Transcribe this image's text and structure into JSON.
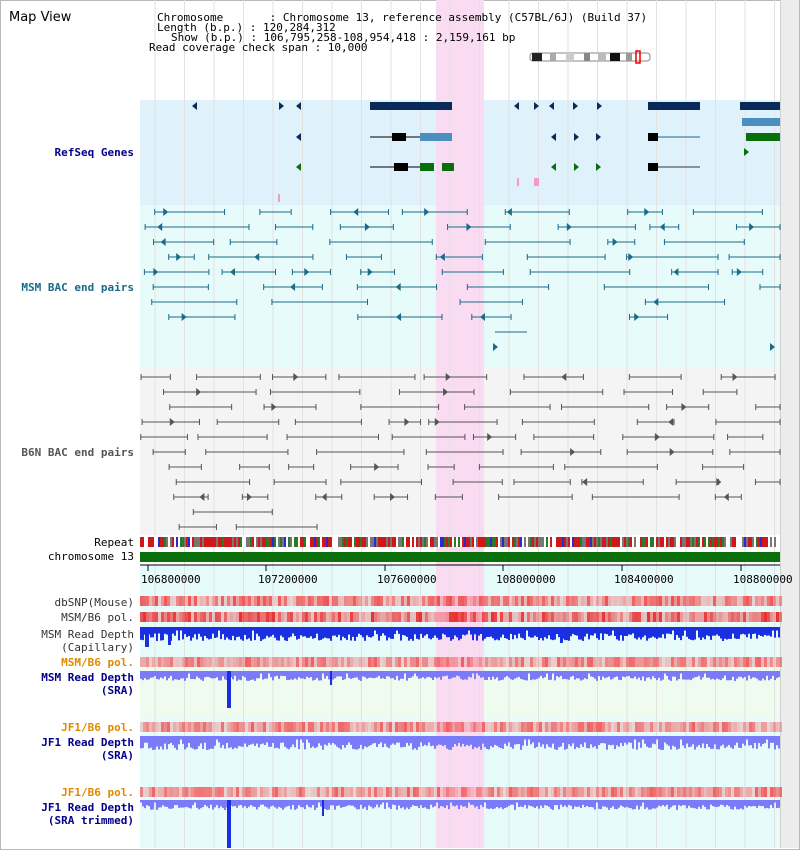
{
  "header": {
    "title": "Map View",
    "lines": [
      "Chromosome       : Chromosome 13, reference assembly (C57BL/6J) (Build 37)",
      "Length (b.p.) : 120,284,312",
      "Show (b.p.) : 106,795,258-108,954,418 : 2,159,161 bp",
      "Read coverage check span : 10,000"
    ]
  },
  "tracks": {
    "refseq": "RefSeq Genes",
    "msm_bac": "MSM BAC end pairs",
    "b6n_bac": "B6N BAC end pairs",
    "repeat": "Repeat",
    "chromosome": "chromosome 13",
    "dbsnp": "dbSNP(Mouse)",
    "msm_b6_pol": "MSM/B6 pol.",
    "msm_read_depth": "MSM Read Depth",
    "capillary": "(Capillary)",
    "msm_b6_pol_sra": "MSM/B6 pol.",
    "msm_read_depth_sra": "MSM Read Depth",
    "sra1": "(SRA)",
    "jf1_b6_pol": "JF1/B6 pol.",
    "jf1_read_depth": "JF1 Read Depth",
    "sra2": "(SRA)",
    "jf1_b6_pol_2": "JF1/B6 pol.",
    "jf1_read_depth_trim": "JF1 Read Depth",
    "sra_trimmed": "(SRA trimmed)"
  },
  "axis": {
    "ticks": [
      "106800000",
      "107200000",
      "107600000",
      "108000000",
      "108400000",
      "108800000"
    ]
  },
  "colors": {
    "refseq_bg": "#dff1fb",
    "track_bg": "#e7fbfb",
    "highlight": "#f9dcf2",
    "gene_dark": "#0a2a5a",
    "gene_mid": "#4a8fbf",
    "gene_green": "#0a6e0a",
    "msm_line": "#1a6a8a",
    "b6n_line": "#555555",
    "chrom": "#0a6e0a",
    "depth_blue": "#1a2fe0",
    "depth_light": "#7b7bfa",
    "pol_red": "#e84848",
    "orange_label": "#e08a00",
    "navy_label": "#00008b"
  }
}
